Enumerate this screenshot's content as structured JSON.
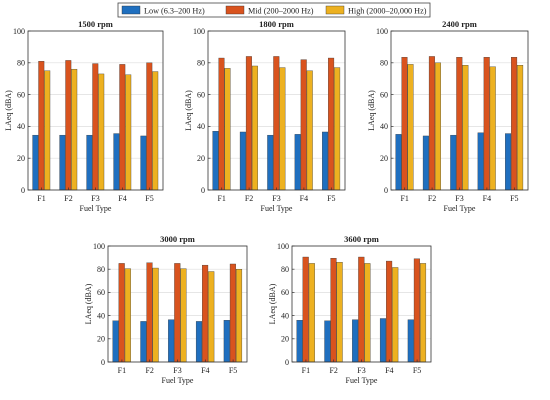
{
  "legend": [
    {
      "label": "Low (6.3–200 Hz)",
      "color": "#1f6fbf"
    },
    {
      "label": "Mid (200–2000 Hz)",
      "color": "#d9531e"
    },
    {
      "label": "High (2000–20,000 Hz)",
      "color": "#edb120"
    }
  ],
  "chart_data": [
    {
      "type": "bar",
      "title": "1500 rpm",
      "xlabel": "Fuel Type",
      "ylabel": "LAeq (dBA)",
      "ylim": [
        0,
        100
      ],
      "yticks": [
        0,
        20,
        40,
        60,
        80,
        100
      ],
      "grid": true,
      "categories": [
        "F1",
        "F2",
        "F3",
        "F4",
        "F5"
      ],
      "series": [
        {
          "name": "Low (6.3–200 Hz)",
          "values": [
            34.5,
            34.5,
            34.5,
            35.5,
            34.0
          ]
        },
        {
          "name": "Mid (200–2000 Hz)",
          "values": [
            81.0,
            81.5,
            79.5,
            79.0,
            80.0
          ]
        },
        {
          "name": "High (2000–20,000 Hz)",
          "values": [
            75.0,
            76.0,
            73.0,
            72.5,
            74.5
          ]
        }
      ]
    },
    {
      "type": "bar",
      "title": "1800 rpm",
      "xlabel": "Fuel Type",
      "ylabel": "LAeq (dBA)",
      "ylim": [
        0,
        100
      ],
      "yticks": [
        0,
        20,
        40,
        60,
        80,
        100
      ],
      "grid": true,
      "categories": [
        "F1",
        "F2",
        "F3",
        "F4",
        "F5"
      ],
      "series": [
        {
          "name": "Low (6.3–200 Hz)",
          "values": [
            37.0,
            36.5,
            34.5,
            35.0,
            36.5
          ]
        },
        {
          "name": "Mid (200–2000 Hz)",
          "values": [
            83.0,
            84.0,
            84.0,
            82.0,
            83.0
          ]
        },
        {
          "name": "High (2000–20,000 Hz)",
          "values": [
            76.5,
            78.0,
            77.0,
            75.0,
            77.0
          ]
        }
      ]
    },
    {
      "type": "bar",
      "title": "2400 rpm",
      "xlabel": "Fuel Type",
      "ylabel": "LAeq (dBA)",
      "ylim": [
        0,
        100
      ],
      "yticks": [
        0,
        20,
        40,
        60,
        80,
        100
      ],
      "grid": true,
      "categories": [
        "F1",
        "F2",
        "F3",
        "F4",
        "F5"
      ],
      "series": [
        {
          "name": "Low (6.3–200 Hz)",
          "values": [
            35.0,
            34.0,
            34.5,
            36.0,
            35.5
          ]
        },
        {
          "name": "Mid (200–2000 Hz)",
          "values": [
            83.5,
            84.0,
            83.5,
            83.5,
            83.5
          ]
        },
        {
          "name": "High (2000–20,000 Hz)",
          "values": [
            79.0,
            80.0,
            78.5,
            77.5,
            78.5
          ]
        }
      ]
    },
    {
      "type": "bar",
      "title": "3000 rpm",
      "xlabel": "Fuel Type",
      "ylabel": "LAeq (dBA)",
      "ylim": [
        0,
        100
      ],
      "yticks": [
        0,
        20,
        40,
        60,
        80,
        100
      ],
      "grid": true,
      "categories": [
        "F1",
        "F2",
        "F3",
        "F4",
        "F5"
      ],
      "series": [
        {
          "name": "Low (6.3–200 Hz)",
          "values": [
            35.5,
            35.0,
            36.5,
            35.0,
            36.0
          ]
        },
        {
          "name": "Mid (200–2000 Hz)",
          "values": [
            85.0,
            85.5,
            85.0,
            83.5,
            84.5
          ]
        },
        {
          "name": "High (2000–20,000 Hz)",
          "values": [
            80.5,
            81.0,
            80.5,
            78.0,
            80.0
          ]
        }
      ]
    },
    {
      "type": "bar",
      "title": "3600 rpm",
      "xlabel": "Fuel Type",
      "ylabel": "LAeq (dBA)",
      "ylim": [
        0,
        100
      ],
      "yticks": [
        0,
        20,
        40,
        60,
        80,
        100
      ],
      "grid": true,
      "categories": [
        "F1",
        "F2",
        "F3",
        "F4",
        "F5"
      ],
      "series": [
        {
          "name": "Low (6.3–200 Hz)",
          "values": [
            36.0,
            35.5,
            36.5,
            37.5,
            36.5
          ]
        },
        {
          "name": "Mid (200–2000 Hz)",
          "values": [
            90.5,
            89.5,
            90.5,
            87.0,
            89.0
          ]
        },
        {
          "name": "High (2000–20,000 Hz)",
          "values": [
            85.0,
            86.0,
            85.0,
            81.5,
            85.0
          ]
        }
      ]
    }
  ]
}
